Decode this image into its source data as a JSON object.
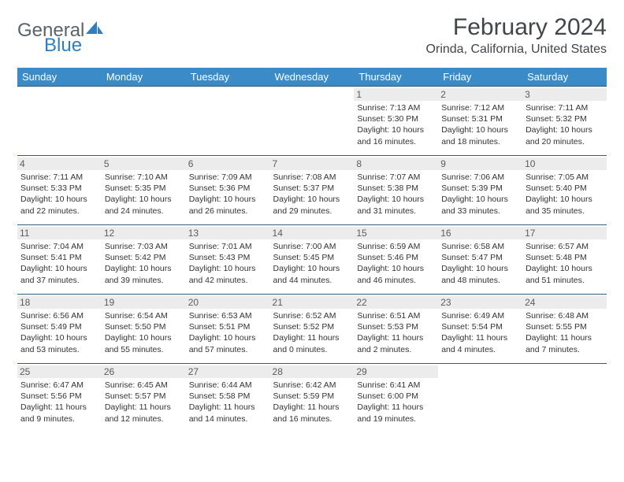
{
  "brand": {
    "part1": "General",
    "part2": "Blue"
  },
  "title": "February 2024",
  "location": "Orinda, California, United States",
  "colors": {
    "header_bg": "#3b8bc8",
    "header_text": "#ffffff",
    "row_border": "#2f5d7a",
    "daynum_bg": "#ececec",
    "logo_gray": "#5a6468",
    "logo_blue": "#2f7fc0",
    "body_text": "#333333"
  },
  "weekdays": [
    "Sunday",
    "Monday",
    "Tuesday",
    "Wednesday",
    "Thursday",
    "Friday",
    "Saturday"
  ],
  "weeks": [
    [
      null,
      null,
      null,
      null,
      {
        "n": "1",
        "sr": "Sunrise: 7:13 AM",
        "ss": "Sunset: 5:30 PM",
        "dl": "Daylight: 10 hours and 16 minutes."
      },
      {
        "n": "2",
        "sr": "Sunrise: 7:12 AM",
        "ss": "Sunset: 5:31 PM",
        "dl": "Daylight: 10 hours and 18 minutes."
      },
      {
        "n": "3",
        "sr": "Sunrise: 7:11 AM",
        "ss": "Sunset: 5:32 PM",
        "dl": "Daylight: 10 hours and 20 minutes."
      }
    ],
    [
      {
        "n": "4",
        "sr": "Sunrise: 7:11 AM",
        "ss": "Sunset: 5:33 PM",
        "dl": "Daylight: 10 hours and 22 minutes."
      },
      {
        "n": "5",
        "sr": "Sunrise: 7:10 AM",
        "ss": "Sunset: 5:35 PM",
        "dl": "Daylight: 10 hours and 24 minutes."
      },
      {
        "n": "6",
        "sr": "Sunrise: 7:09 AM",
        "ss": "Sunset: 5:36 PM",
        "dl": "Daylight: 10 hours and 26 minutes."
      },
      {
        "n": "7",
        "sr": "Sunrise: 7:08 AM",
        "ss": "Sunset: 5:37 PM",
        "dl": "Daylight: 10 hours and 29 minutes."
      },
      {
        "n": "8",
        "sr": "Sunrise: 7:07 AM",
        "ss": "Sunset: 5:38 PM",
        "dl": "Daylight: 10 hours and 31 minutes."
      },
      {
        "n": "9",
        "sr": "Sunrise: 7:06 AM",
        "ss": "Sunset: 5:39 PM",
        "dl": "Daylight: 10 hours and 33 minutes."
      },
      {
        "n": "10",
        "sr": "Sunrise: 7:05 AM",
        "ss": "Sunset: 5:40 PM",
        "dl": "Daylight: 10 hours and 35 minutes."
      }
    ],
    [
      {
        "n": "11",
        "sr": "Sunrise: 7:04 AM",
        "ss": "Sunset: 5:41 PM",
        "dl": "Daylight: 10 hours and 37 minutes."
      },
      {
        "n": "12",
        "sr": "Sunrise: 7:03 AM",
        "ss": "Sunset: 5:42 PM",
        "dl": "Daylight: 10 hours and 39 minutes."
      },
      {
        "n": "13",
        "sr": "Sunrise: 7:01 AM",
        "ss": "Sunset: 5:43 PM",
        "dl": "Daylight: 10 hours and 42 minutes."
      },
      {
        "n": "14",
        "sr": "Sunrise: 7:00 AM",
        "ss": "Sunset: 5:45 PM",
        "dl": "Daylight: 10 hours and 44 minutes."
      },
      {
        "n": "15",
        "sr": "Sunrise: 6:59 AM",
        "ss": "Sunset: 5:46 PM",
        "dl": "Daylight: 10 hours and 46 minutes."
      },
      {
        "n": "16",
        "sr": "Sunrise: 6:58 AM",
        "ss": "Sunset: 5:47 PM",
        "dl": "Daylight: 10 hours and 48 minutes."
      },
      {
        "n": "17",
        "sr": "Sunrise: 6:57 AM",
        "ss": "Sunset: 5:48 PM",
        "dl": "Daylight: 10 hours and 51 minutes."
      }
    ],
    [
      {
        "n": "18",
        "sr": "Sunrise: 6:56 AM",
        "ss": "Sunset: 5:49 PM",
        "dl": "Daylight: 10 hours and 53 minutes."
      },
      {
        "n": "19",
        "sr": "Sunrise: 6:54 AM",
        "ss": "Sunset: 5:50 PM",
        "dl": "Daylight: 10 hours and 55 minutes."
      },
      {
        "n": "20",
        "sr": "Sunrise: 6:53 AM",
        "ss": "Sunset: 5:51 PM",
        "dl": "Daylight: 10 hours and 57 minutes."
      },
      {
        "n": "21",
        "sr": "Sunrise: 6:52 AM",
        "ss": "Sunset: 5:52 PM",
        "dl": "Daylight: 11 hours and 0 minutes."
      },
      {
        "n": "22",
        "sr": "Sunrise: 6:51 AM",
        "ss": "Sunset: 5:53 PM",
        "dl": "Daylight: 11 hours and 2 minutes."
      },
      {
        "n": "23",
        "sr": "Sunrise: 6:49 AM",
        "ss": "Sunset: 5:54 PM",
        "dl": "Daylight: 11 hours and 4 minutes."
      },
      {
        "n": "24",
        "sr": "Sunrise: 6:48 AM",
        "ss": "Sunset: 5:55 PM",
        "dl": "Daylight: 11 hours and 7 minutes."
      }
    ],
    [
      {
        "n": "25",
        "sr": "Sunrise: 6:47 AM",
        "ss": "Sunset: 5:56 PM",
        "dl": "Daylight: 11 hours and 9 minutes."
      },
      {
        "n": "26",
        "sr": "Sunrise: 6:45 AM",
        "ss": "Sunset: 5:57 PM",
        "dl": "Daylight: 11 hours and 12 minutes."
      },
      {
        "n": "27",
        "sr": "Sunrise: 6:44 AM",
        "ss": "Sunset: 5:58 PM",
        "dl": "Daylight: 11 hours and 14 minutes."
      },
      {
        "n": "28",
        "sr": "Sunrise: 6:42 AM",
        "ss": "Sunset: 5:59 PM",
        "dl": "Daylight: 11 hours and 16 minutes."
      },
      {
        "n": "29",
        "sr": "Sunrise: 6:41 AM",
        "ss": "Sunset: 6:00 PM",
        "dl": "Daylight: 11 hours and 19 minutes."
      },
      null,
      null
    ]
  ]
}
